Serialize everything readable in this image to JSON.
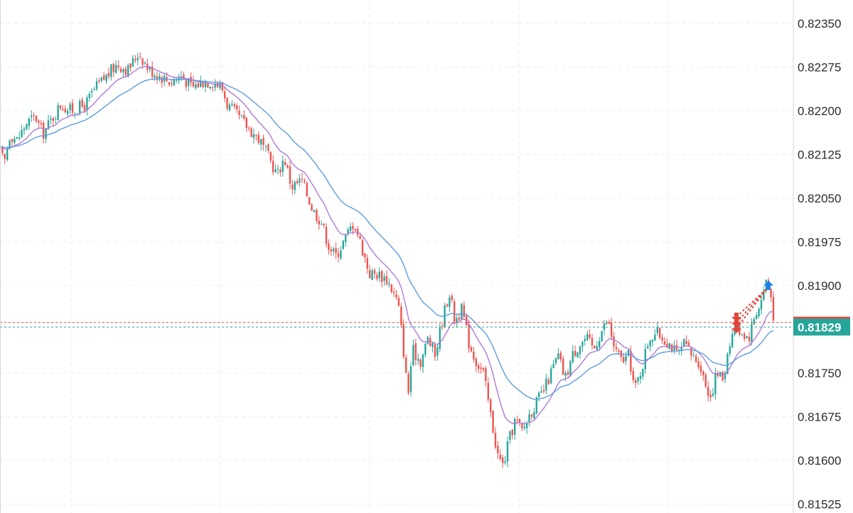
{
  "chart_data": {
    "type": "candlestick",
    "price_axis": {
      "position": "right",
      "ylim": [
        0.8151,
        0.8239
      ],
      "ticks": [
        "0.82350",
        "0.82275",
        "0.82200",
        "0.82125",
        "0.82050",
        "0.81975",
        "0.81900",
        "0.81750",
        "0.81675",
        "0.81600",
        "0.81525"
      ]
    },
    "grid": true,
    "colors": {
      "up": "#26a69a",
      "down": "#ef5350",
      "ma_fast": "#b07ad8",
      "ma_slow": "#5d9de0",
      "bid_line": "#e0463c",
      "current_line": "#26a69a",
      "current_tag": "#26a69a",
      "bid_tag": "#e0463c",
      "sell_arrow": "#e0463c",
      "buy_arrow": "#1e7fe6"
    },
    "current_price": {
      "label": "0.81829",
      "value": 0.81829
    },
    "bid_price": {
      "value": 0.81837
    },
    "close_path": [
      [
        0,
        0.8213
      ],
      [
        6,
        0.8211
      ],
      [
        14,
        0.8216
      ],
      [
        24,
        0.8215
      ],
      [
        38,
        0.8218
      ],
      [
        50,
        0.8219
      ],
      [
        60,
        0.8216
      ],
      [
        70,
        0.8218
      ],
      [
        85,
        0.8221
      ],
      [
        100,
        0.822
      ],
      [
        120,
        0.8221
      ],
      [
        135,
        0.8224
      ],
      [
        150,
        0.8226
      ],
      [
        165,
        0.8228
      ],
      [
        180,
        0.8227
      ],
      [
        195,
        0.823
      ],
      [
        210,
        0.8227
      ],
      [
        225,
        0.8226
      ],
      [
        240,
        0.8225
      ],
      [
        255,
        0.8226
      ],
      [
        270,
        0.8224
      ],
      [
        285,
        0.8225
      ],
      [
        300,
        0.8225
      ],
      [
        312,
        0.8224
      ],
      [
        320,
        0.8221
      ],
      [
        335,
        0.8219
      ],
      [
        350,
        0.8217
      ],
      [
        365,
        0.8215
      ],
      [
        378,
        0.8212
      ],
      [
        390,
        0.8209
      ],
      [
        400,
        0.8212
      ],
      [
        410,
        0.8207
      ],
      [
        425,
        0.8208
      ],
      [
        440,
        0.8203
      ],
      [
        452,
        0.8201
      ],
      [
        462,
        0.8197
      ],
      [
        472,
        0.8195
      ],
      [
        485,
        0.8198
      ],
      [
        498,
        0.8201
      ],
      [
        508,
        0.8197
      ],
      [
        520,
        0.8192
      ],
      [
        532,
        0.8192
      ],
      [
        545,
        0.8191
      ],
      [
        560,
        0.8187
      ],
      [
        566,
        0.8181
      ],
      [
        574,
        0.8171
      ],
      [
        580,
        0.8179
      ],
      [
        592,
        0.8177
      ],
      [
        602,
        0.8181
      ],
      [
        612,
        0.8178
      ],
      [
        622,
        0.8184
      ],
      [
        632,
        0.8189
      ],
      [
        640,
        0.8184
      ],
      [
        650,
        0.8186
      ],
      [
        660,
        0.818
      ],
      [
        670,
        0.8177
      ],
      [
        680,
        0.8175
      ],
      [
        690,
        0.8168
      ],
      [
        700,
        0.8161
      ],
      [
        708,
        0.8159
      ],
      [
        715,
        0.8163
      ],
      [
        725,
        0.8167
      ],
      [
        735,
        0.8165
      ],
      [
        745,
        0.8168
      ],
      [
        755,
        0.817
      ],
      [
        765,
        0.8172
      ],
      [
        775,
        0.8175
      ],
      [
        785,
        0.8178
      ],
      [
        795,
        0.8174
      ],
      [
        805,
        0.8178
      ],
      [
        815,
        0.818
      ],
      [
        825,
        0.8181
      ],
      [
        835,
        0.8179
      ],
      [
        845,
        0.8182
      ],
      [
        855,
        0.8184
      ],
      [
        865,
        0.8179
      ],
      [
        875,
        0.8177
      ],
      [
        885,
        0.8178
      ],
      [
        893,
        0.8172
      ],
      [
        903,
        0.8176
      ],
      [
        913,
        0.8181
      ],
      [
        923,
        0.8182
      ],
      [
        933,
        0.8181
      ],
      [
        943,
        0.818
      ],
      [
        953,
        0.8178
      ],
      [
        963,
        0.818
      ],
      [
        973,
        0.8178
      ],
      [
        983,
        0.8177
      ],
      [
        993,
        0.8173
      ],
      [
        1000,
        0.8171
      ],
      [
        1008,
        0.8175
      ],
      [
        1018,
        0.8174
      ],
      [
        1025,
        0.818
      ],
      [
        1035,
        0.8183
      ],
      [
        1045,
        0.8182
      ],
      [
        1053,
        0.8181
      ],
      [
        1062,
        0.8185
      ],
      [
        1070,
        0.8187
      ],
      [
        1078,
        0.8191
      ],
      [
        1085,
        0.8188
      ],
      [
        1090,
        0.8183
      ]
    ]
  }
}
